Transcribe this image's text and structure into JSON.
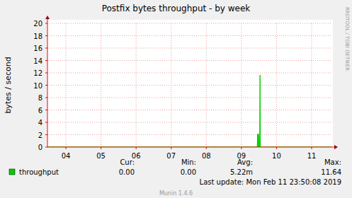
{
  "chart_data": {
    "type": "area",
    "title": "Postfix bytes throughput - by week",
    "y_label": "bytes / second",
    "x": [
      3.975,
      9.95,
      9.96,
      9.99,
      10.0,
      10.02,
      10.03,
      10.04,
      12.065
    ],
    "series": [
      {
        "name": "throughput",
        "color": "#00cc00",
        "values": [
          0,
          0,
          2.1,
          2.1,
          0,
          0,
          11.64,
          0,
          0
        ],
        "stats": [
          "0.00",
          "0.00",
          "5.22m",
          "11.64"
        ]
      }
    ],
    "stats_labels": [
      "Cur:",
      "Min:",
      "Avg:",
      "Max:"
    ],
    "xlim": [
      3.975,
      12.065
    ],
    "xticks": [
      {
        "value": 4.5,
        "label": "04"
      },
      {
        "value": 5.5,
        "label": "05"
      },
      {
        "value": 6.5,
        "label": "06"
      },
      {
        "value": 7.5,
        "label": "07"
      },
      {
        "value": 8.5,
        "label": "08"
      },
      {
        "value": 9.5,
        "label": "09"
      },
      {
        "value": 10.5,
        "label": "10"
      },
      {
        "value": 11.5,
        "label": "11"
      }
    ],
    "ylim": [
      0,
      20
    ],
    "yticks": [
      0,
      2,
      4,
      6,
      8,
      10,
      12,
      14,
      16,
      18,
      20
    ],
    "grid": true,
    "legend": "bottom",
    "annotations": [
      "RRDTOOL / TOBI OETIKER",
      "Last update: Mon Feb 11 23:50:08 2019",
      "Munin 1.4.6"
    ]
  }
}
